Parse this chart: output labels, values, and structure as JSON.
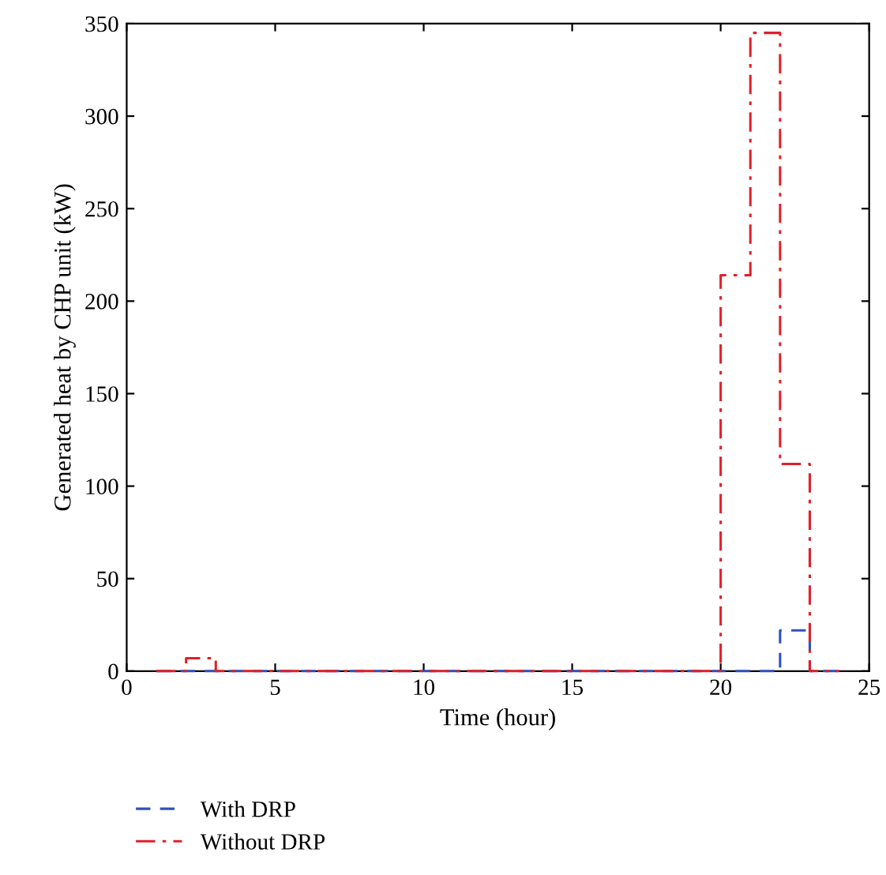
{
  "chart_data": {
    "type": "step",
    "xlabel": "Time (hour)",
    "ylabel": "Generated heat by CHP unit (kW)",
    "x": [
      1,
      2,
      3,
      4,
      5,
      6,
      7,
      8,
      9,
      10,
      11,
      12,
      13,
      14,
      15,
      16,
      17,
      18,
      19,
      20,
      21,
      22,
      23,
      24
    ],
    "series": [
      {
        "name": "With DRP",
        "color": "#3050c0",
        "line_style": "dashed",
        "values": [
          0,
          0,
          0,
          0,
          0,
          0,
          0,
          0,
          0,
          0,
          0,
          0,
          0,
          0,
          0,
          0,
          0,
          0,
          0,
          0,
          0,
          22,
          0,
          0
        ]
      },
      {
        "name": "Without DRP",
        "color": "#e0202a",
        "line_style": "dashdot",
        "values": [
          0,
          7,
          0,
          0,
          0,
          0,
          0,
          0,
          0,
          0,
          0,
          0,
          0,
          0,
          0,
          0,
          0,
          0,
          0,
          214,
          345,
          112,
          0,
          0
        ]
      }
    ],
    "xlim": [
      0,
      25
    ],
    "xticks": [
      0,
      5,
      10,
      15,
      20,
      25
    ],
    "ylim": [
      0,
      350
    ],
    "yticks": [
      0,
      50,
      100,
      150,
      200,
      250,
      300,
      350
    ],
    "grid": false,
    "legend": "bottom"
  }
}
